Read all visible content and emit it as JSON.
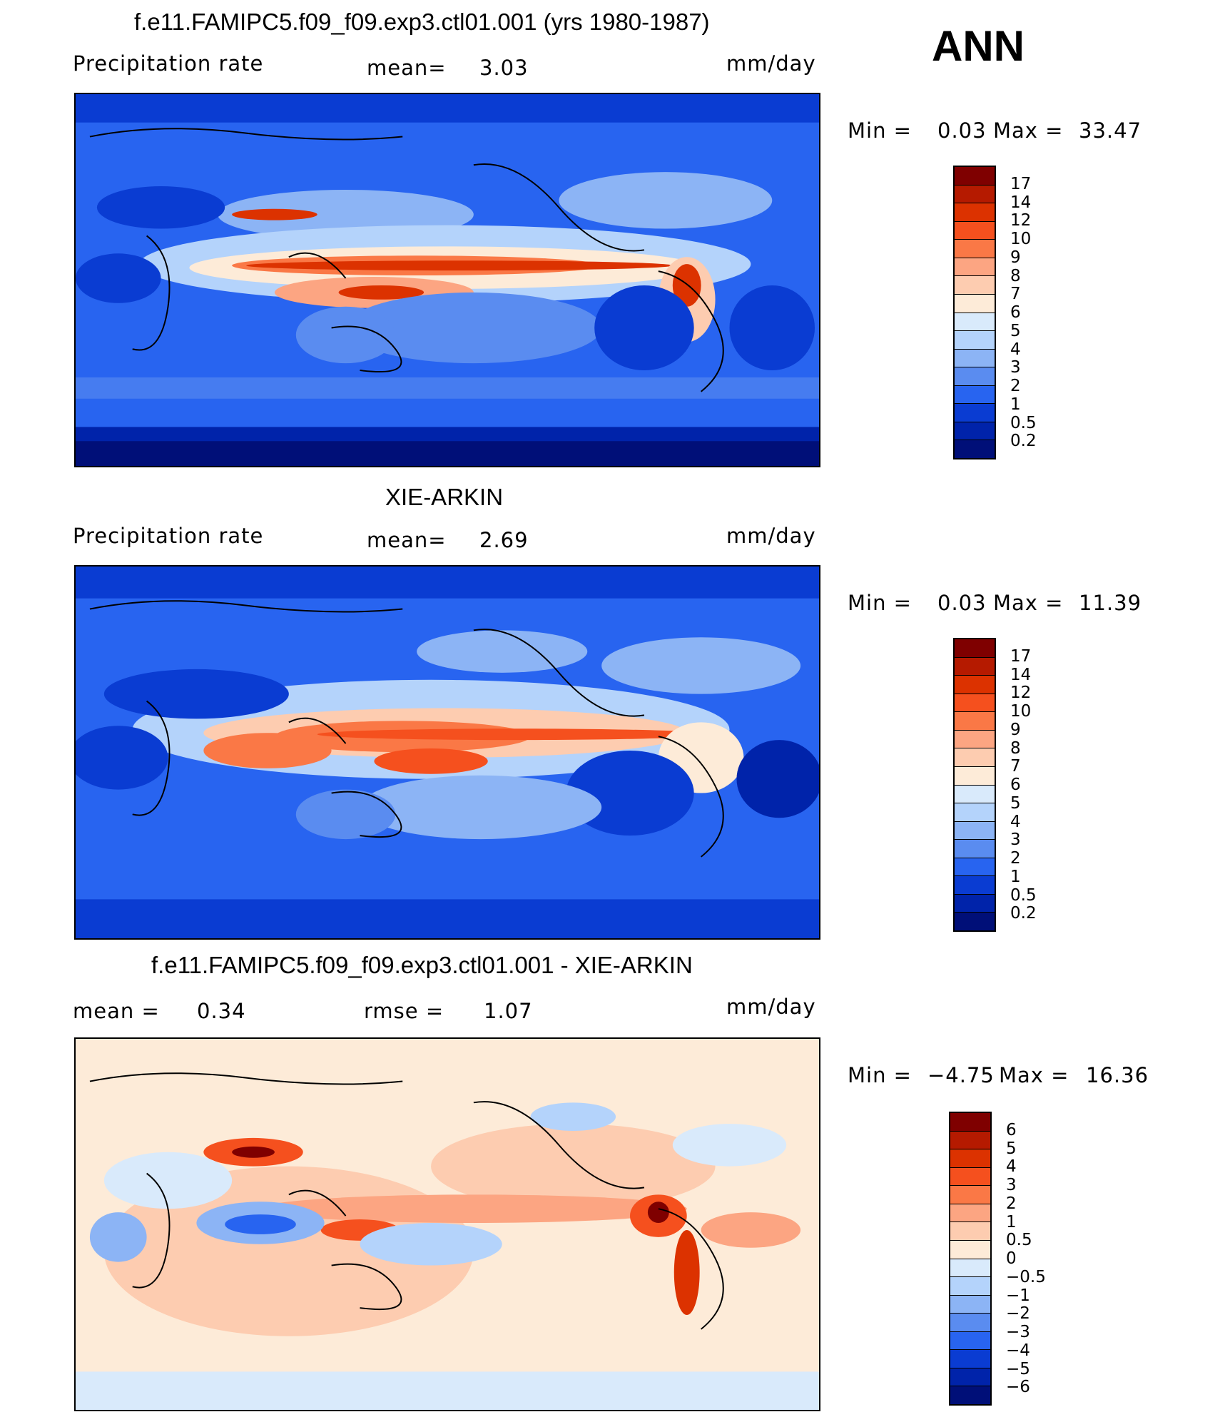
{
  "season": "ANN",
  "panels": [
    {
      "title": "f.e11.FAMIPC5.f09_f09.exp3.ctl01.001 (yrs 1980-1987)",
      "left_label": "Precipitation  rate",
      "mid_label": "mean=",
      "mid_value": "3.03",
      "units": "mm/day",
      "min_label": "Min  =",
      "min_value": "0.03",
      "max_label": "Max  =",
      "max_value": "33.47"
    },
    {
      "title": "XIE-ARKIN",
      "left_label": "Precipitation  rate",
      "mid_label": "mean=",
      "mid_value": "2.69",
      "units": "mm/day",
      "min_label": "Min  =",
      "min_value": "0.03",
      "max_label": "Max  =",
      "max_value": "11.39"
    },
    {
      "title": "f.e11.FAMIPC5.f09_f09.exp3.ctl01.001 - XIE-ARKIN",
      "left_label": "mean  =",
      "left_value": "0.34",
      "mid_label": "rmse  =",
      "mid_value": "1.07",
      "units": "mm/day",
      "min_label": "Min  =",
      "min_value": "−4.75",
      "max_label": "Max  =",
      "max_value": "16.36"
    }
  ],
  "colorbars": {
    "precip": {
      "labels": [
        "17",
        "14",
        "12",
        "10",
        "9",
        "8",
        "7",
        "6",
        "5",
        "4",
        "3",
        "2",
        "1",
        "0.5",
        "0.2"
      ],
      "colors": [
        "#7f0000",
        "#b51a00",
        "#dc3200",
        "#f5501e",
        "#fa7846",
        "#fca582",
        "#fdccb0",
        "#fdebd8",
        "#d9eafb",
        "#b4d3fb",
        "#8cb4f5",
        "#5a8cf0",
        "#2864f0",
        "#0a3cd2",
        "#0023aa",
        "#000f78"
      ]
    },
    "diff": {
      "labels": [
        "6",
        "5",
        "4",
        "3",
        "2",
        "1",
        "0.5",
        "0",
        "−0.5",
        "−1",
        "−2",
        "−3",
        "−4",
        "−5",
        "−6"
      ],
      "colors": [
        "#7f0000",
        "#b51a00",
        "#dc3200",
        "#f5501e",
        "#fa7846",
        "#fca582",
        "#fdccb0",
        "#fdebd8",
        "#d9eafb",
        "#b4d3fb",
        "#8cb4f5",
        "#5a8cf0",
        "#2864f0",
        "#0a3cd2",
        "#0023aa",
        "#000f78"
      ]
    }
  },
  "chart_data": {
    "type": "heatmap",
    "variable": "Precipitation rate",
    "units": "mm/day",
    "season": "ANN",
    "maps": [
      {
        "name": "f.e11.FAMIPC5.f09_f09.exp3.ctl01.001 (yrs 1980-1987)",
        "mean": 3.03,
        "min": 0.03,
        "max": 33.47
      },
      {
        "name": "XIE-ARKIN",
        "mean": 2.69,
        "min": 0.03,
        "max": 11.39
      },
      {
        "name": "f.e11.FAMIPC5.f09_f09.exp3.ctl01.001 - XIE-ARKIN",
        "mean": 0.34,
        "rmse": 1.07,
        "min": -4.75,
        "max": 16.36
      }
    ],
    "contour_levels_precip": [
      0.2,
      0.5,
      1,
      2,
      3,
      4,
      5,
      6,
      7,
      8,
      9,
      10,
      12,
      14,
      17
    ],
    "contour_levels_diff": [
      -6,
      -5,
      -4,
      -3,
      -2,
      -1,
      -0.5,
      0,
      0.5,
      1,
      2,
      3,
      4,
      5,
      6
    ]
  }
}
